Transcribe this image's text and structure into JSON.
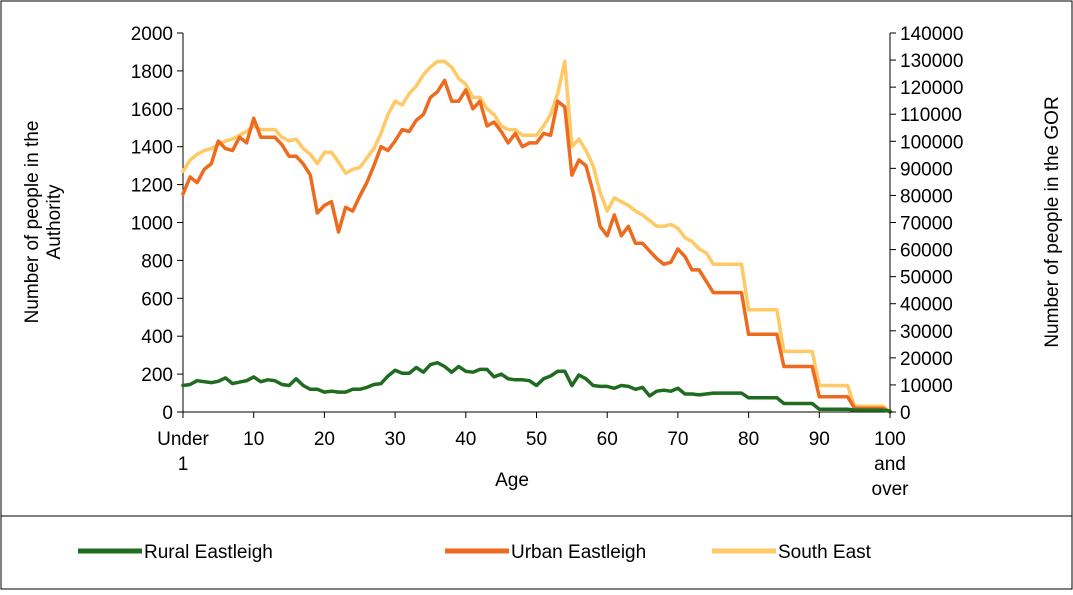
{
  "chart_data": {
    "type": "line",
    "title": "",
    "xlabel": "Age",
    "ylabel_left": "Number of people in the Authority",
    "ylabel_right": "Number of people in the GOR",
    "ylim_left": [
      0,
      2000
    ],
    "ylim_right": [
      0,
      140000
    ],
    "xlim": [
      0,
      100
    ],
    "left_ticks": [
      0,
      200,
      400,
      600,
      800,
      1000,
      1200,
      1400,
      1600,
      1800,
      2000
    ],
    "right_ticks": [
      0,
      10000,
      20000,
      30000,
      40000,
      50000,
      60000,
      70000,
      80000,
      90000,
      100000,
      110000,
      120000,
      130000,
      140000
    ],
    "x_ticks": [
      {
        "value": 0,
        "label": "Under 1"
      },
      {
        "value": 10,
        "label": "10"
      },
      {
        "value": 20,
        "label": "20"
      },
      {
        "value": 30,
        "label": "30"
      },
      {
        "value": 40,
        "label": "40"
      },
      {
        "value": 50,
        "label": "50"
      },
      {
        "value": 60,
        "label": "60"
      },
      {
        "value": 70,
        "label": "70"
      },
      {
        "value": 80,
        "label": "80"
      },
      {
        "value": 90,
        "label": "90"
      },
      {
        "value": 100,
        "label": "100 and over"
      }
    ],
    "grid": false,
    "legend_position": "bottom",
    "series": [
      {
        "name": "Rural Eastleigh",
        "axis": "left",
        "color": "#1f6b1f",
        "x": [
          0,
          1,
          2,
          3,
          4,
          5,
          6,
          7,
          8,
          9,
          10,
          11,
          12,
          13,
          14,
          15,
          16,
          17,
          18,
          19,
          20,
          21,
          22,
          23,
          24,
          25,
          26,
          27,
          28,
          29,
          30,
          31,
          32,
          33,
          34,
          35,
          36,
          37,
          38,
          39,
          40,
          41,
          42,
          43,
          44,
          45,
          46,
          47,
          48,
          49,
          50,
          51,
          52,
          53,
          54,
          55,
          56,
          57,
          58,
          59,
          60,
          61,
          62,
          63,
          64,
          65,
          66,
          67,
          68,
          69,
          70,
          71,
          72,
          73,
          74,
          75,
          79,
          80,
          84,
          85,
          89,
          90,
          94,
          95,
          99,
          100
        ],
        "values": [
          140,
          145,
          165,
          160,
          155,
          162,
          180,
          150,
          158,
          165,
          185,
          160,
          170,
          165,
          145,
          140,
          175,
          140,
          120,
          120,
          105,
          110,
          105,
          105,
          120,
          120,
          130,
          145,
          150,
          190,
          220,
          205,
          205,
          235,
          210,
          250,
          260,
          240,
          210,
          240,
          215,
          210,
          225,
          225,
          185,
          200,
          175,
          170,
          170,
          165,
          140,
          175,
          190,
          215,
          215,
          140,
          195,
          175,
          140,
          135,
          135,
          125,
          140,
          135,
          120,
          130,
          85,
          110,
          115,
          110,
          125,
          95,
          95,
          90,
          95,
          100,
          100,
          75,
          75,
          45,
          45,
          15,
          15,
          10,
          10,
          5
        ]
      },
      {
        "name": "Urban Eastleigh",
        "axis": "right",
        "color": "#ee6a1e",
        "x": [
          0,
          1,
          2,
          3,
          4,
          5,
          6,
          7,
          8,
          9,
          10,
          11,
          12,
          13,
          14,
          15,
          16,
          17,
          18,
          19,
          20,
          21,
          22,
          23,
          24,
          25,
          26,
          27,
          28,
          29,
          30,
          31,
          32,
          33,
          34,
          35,
          36,
          37,
          38,
          39,
          40,
          41,
          42,
          43,
          44,
          45,
          46,
          47,
          48,
          49,
          50,
          51,
          52,
          53,
          54,
          55,
          56,
          57,
          58,
          59,
          60,
          61,
          62,
          63,
          64,
          65,
          66,
          67,
          68,
          69,
          70,
          71,
          72,
          73,
          74,
          75,
          79,
          80,
          84,
          85,
          89,
          90,
          94,
          95,
          99,
          100
        ],
        "values": [
          80500,
          86800,
          84700,
          89600,
          91700,
          100100,
          97300,
          96600,
          101500,
          99400,
          108500,
          101500,
          101500,
          101500,
          98700,
          94500,
          94500,
          91700,
          87500,
          73500,
          76300,
          77700,
          66500,
          75600,
          74200,
          79800,
          84700,
          91000,
          98000,
          96600,
          100100,
          104300,
          103600,
          107800,
          109900,
          116200,
          118300,
          122500,
          114800,
          114800,
          119000,
          112000,
          114800,
          105700,
          107100,
          103600,
          99400,
          102900,
          98000,
          99400,
          99400,
          102900,
          102200,
          114800,
          112700,
          87500,
          93100,
          91000,
          81200,
          68600,
          65100,
          72800,
          65100,
          68600,
          62300,
          62300,
          59500,
          56700,
          54600,
          55300,
          60200,
          57400,
          52500,
          52500,
          48300,
          44100,
          44100,
          28700,
          28700,
          16800,
          16800,
          5600,
          5600,
          1400,
          1400,
          0
        ]
      },
      {
        "name": "South East",
        "axis": "right",
        "color": "#ffc966",
        "x": [
          0,
          1,
          2,
          3,
          4,
          5,
          6,
          7,
          8,
          9,
          10,
          11,
          12,
          13,
          14,
          15,
          16,
          17,
          18,
          19,
          20,
          21,
          22,
          23,
          24,
          25,
          26,
          27,
          28,
          29,
          30,
          31,
          32,
          33,
          34,
          35,
          36,
          37,
          38,
          39,
          40,
          41,
          42,
          43,
          44,
          45,
          46,
          47,
          48,
          49,
          50,
          51,
          52,
          53,
          54,
          55,
          56,
          57,
          58,
          59,
          60,
          61,
          62,
          63,
          64,
          65,
          66,
          67,
          68,
          69,
          70,
          71,
          72,
          73,
          74,
          75,
          79,
          80,
          84,
          85,
          89,
          90,
          94,
          95,
          99,
          100
        ],
        "values": [
          88900,
          93100,
          95200,
          96600,
          97300,
          98700,
          100100,
          100800,
          102200,
          103600,
          105700,
          104300,
          104300,
          104300,
          101500,
          100100,
          100800,
          97300,
          95200,
          91700,
          95900,
          95900,
          92400,
          88200,
          89600,
          90300,
          93800,
          97300,
          102900,
          109900,
          114800,
          113400,
          117600,
          120400,
          124600,
          127400,
          129500,
          129500,
          127400,
          123200,
          121100,
          116200,
          116200,
          112000,
          109900,
          105700,
          104300,
          104300,
          102200,
          102200,
          102200,
          105700,
          109900,
          117600,
          129500,
          98000,
          100800,
          96600,
          91000,
          81200,
          74200,
          79100,
          77700,
          76300,
          74200,
          72800,
          70700,
          68600,
          68600,
          69300,
          67900,
          64400,
          63000,
          60200,
          58800,
          54600,
          54600,
          37800,
          37800,
          22400,
          22400,
          9800,
          9800,
          2100,
          2100,
          0
        ]
      }
    ]
  }
}
